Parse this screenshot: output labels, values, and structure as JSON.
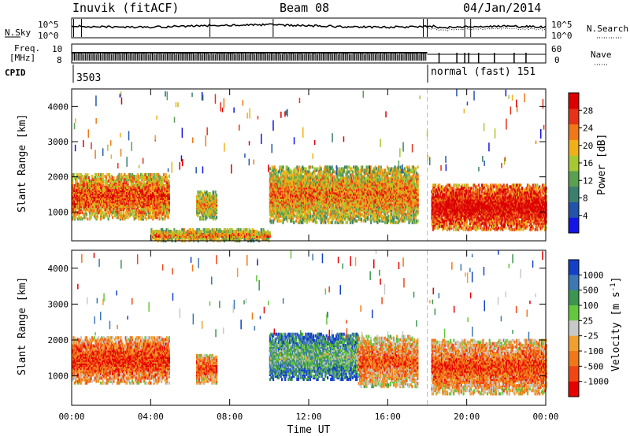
{
  "header": {
    "station": "Inuvik (fitACF)",
    "beam": "Beam 08",
    "date": "04/Jan/2014"
  },
  "summary": {
    "nsky_label": "N.Sky",
    "nsearch_label": "N.Search",
    "noise_ticks": [
      "10^5",
      "10^0"
    ],
    "freq_label_line1": "Freq.",
    "freq_label_line2": "[MHz]",
    "freq_ticks": [
      "10",
      "8"
    ],
    "nave_label": "Nave",
    "nave_ticks": [
      "60",
      "0"
    ],
    "cpid_label": "CPID",
    "cpid_left": "3503",
    "cpid_right": "normal (fast) 151"
  },
  "chart_data": [
    {
      "type": "heatmap",
      "name": "power",
      "xlabel": "",
      "ylabel": "Slant Range [km]",
      "xlim": [
        0,
        24
      ],
      "ylim": [
        180,
        4500
      ],
      "yticks": [
        "1000",
        "2000",
        "3000",
        "4000"
      ],
      "xticks": [
        "00:00",
        "04:00",
        "08:00",
        "12:00",
        "16:00",
        "20:00",
        "00:00"
      ],
      "colorbar": {
        "label": "Power [dB]",
        "ticks": [
          "4",
          "8",
          "12",
          "16",
          "20",
          "24",
          "28"
        ],
        "colors": [
          "#1414e6",
          "#2255aa",
          "#3b7f6e",
          "#5aa050",
          "#a6c832",
          "#f0b018",
          "#f07818",
          "#e63218",
          "#dc0000"
        ]
      },
      "scatter_regions": [
        {
          "t0": 0.0,
          "t1": 4.9,
          "r0": 800,
          "r1": 2100,
          "level": 0.7
        },
        {
          "t0": 6.3,
          "t1": 7.3,
          "r0": 800,
          "r1": 1600,
          "level": 0.55
        },
        {
          "t0": 10.0,
          "t1": 17.5,
          "r0": 700,
          "r1": 2300,
          "level": 0.6
        },
        {
          "t0": 18.2,
          "t1": 24.0,
          "r0": 500,
          "r1": 1800,
          "level": 0.85
        },
        {
          "t0": 4.0,
          "t1": 10.0,
          "r0": 180,
          "r1": 500,
          "level": 0.6
        }
      ],
      "cpid_change_time": 18.0
    },
    {
      "type": "heatmap",
      "name": "velocity",
      "xlabel": "Time UT",
      "ylabel": "Slant Range [km]",
      "xlim": [
        0,
        24
      ],
      "ylim": [
        180,
        4500
      ],
      "yticks": [
        "1000",
        "2000",
        "3000",
        "4000"
      ],
      "xticks": [
        "00:00",
        "04:00",
        "08:00",
        "12:00",
        "16:00",
        "20:00",
        "00:00"
      ],
      "colorbar": {
        "label": "Velocity [m s^-1]",
        "ticks": [
          "1000",
          "500",
          "100",
          "25",
          "-25",
          "-100",
          "-500",
          "-1000"
        ],
        "colors": [
          "#1440c8",
          "#3c78b4",
          "#3c9650",
          "#64c83c",
          "#c8c8c8",
          "#f0a030",
          "#f07818",
          "#f04614",
          "#e60000"
        ]
      },
      "scatter_regions": [
        {
          "t0": 0.0,
          "t1": 4.9,
          "r0": 800,
          "r1": 2100,
          "level": 0.75
        },
        {
          "t0": 6.3,
          "t1": 7.3,
          "r0": 800,
          "r1": 1600,
          "level": 0.7
        },
        {
          "t0": 10.0,
          "t1": 14.5,
          "r0": 900,
          "r1": 2200,
          "level": 0.25
        },
        {
          "t0": 14.5,
          "t1": 17.5,
          "r0": 700,
          "r1": 2100,
          "level": 0.65
        },
        {
          "t0": 18.2,
          "t1": 24.0,
          "r0": 500,
          "r1": 2000,
          "level": 0.7
        }
      ],
      "cpid_change_time": 18.0
    }
  ],
  "colors": {
    "axis": "#000000",
    "dashed_marker": "#bbbbbb",
    "background": "#ffffff"
  }
}
